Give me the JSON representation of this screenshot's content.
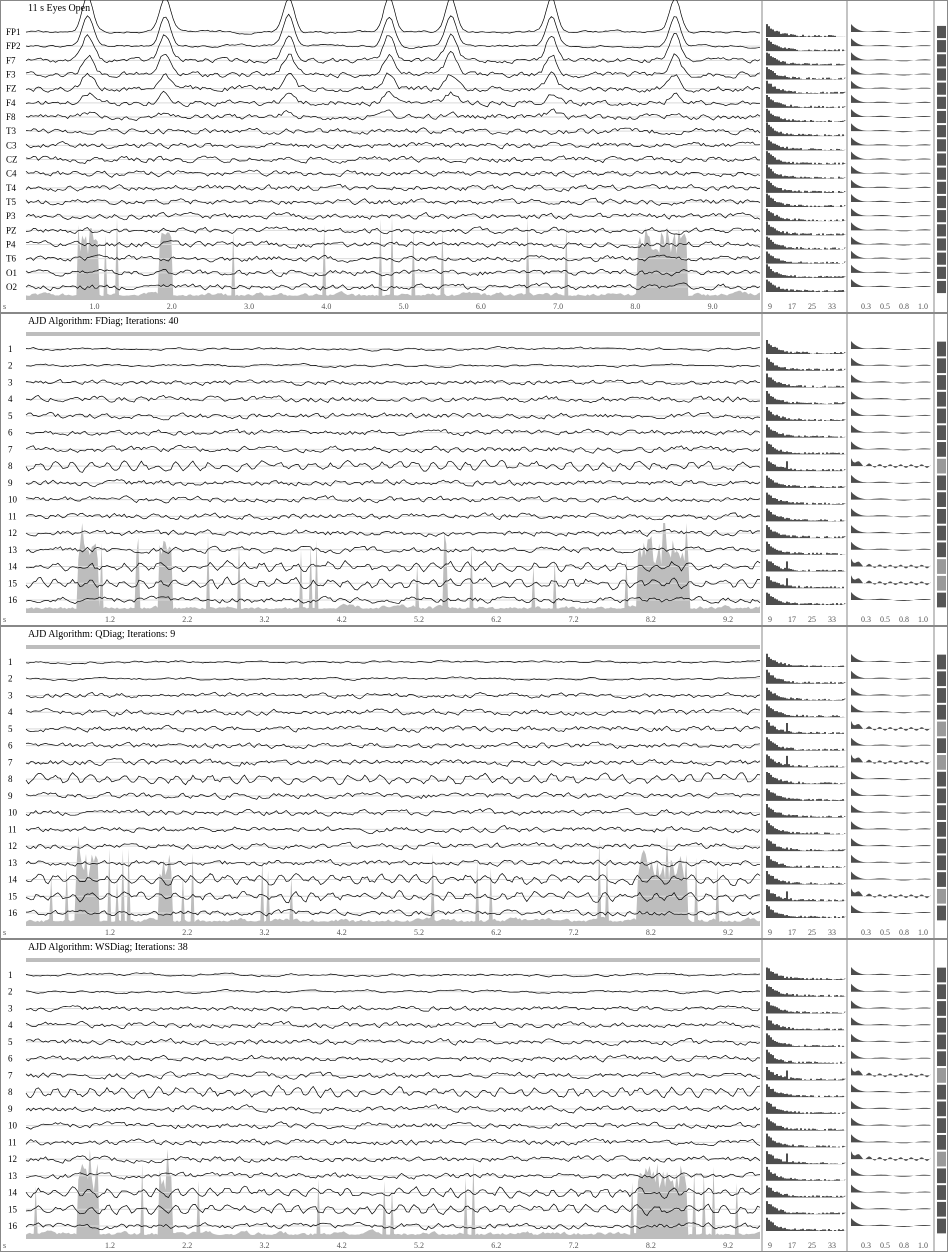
{
  "colors": {
    "trace": "#000000",
    "power_fill": "#bdbdbd",
    "separator_line": "#d9d9d9",
    "hist_fill": "#4d4d4d",
    "bar_dark": "#555555",
    "bar_light": "#999999",
    "panel_border": "#888888"
  },
  "chart_data": [
    {
      "type": "line",
      "title": "11 s Eyes Open",
      "corner_label": "s",
      "channels": [
        "FP1",
        "FP2",
        "F7",
        "F3",
        "FZ",
        "F4",
        "F8",
        "T3",
        "C3",
        "CZ",
        "C4",
        "T4",
        "T5",
        "P3",
        "PZ",
        "P4",
        "T6",
        "O1",
        "O2"
      ],
      "x_ticks": [
        "1.0",
        "2.0",
        "3.0",
        "4.0",
        "5.0",
        "6.0",
        "7.0",
        "8.0",
        "9.0"
      ],
      "xlim": [
        0.1,
        9.6
      ],
      "spectrum_ticks": [
        "9",
        "17",
        "25",
        "33"
      ],
      "coherence_ticks": [
        "0.3",
        "0.5",
        "0.8",
        "1.0"
      ],
      "blink_times": [
        0.9,
        1.9,
        3.5,
        4.8,
        5.6,
        6.9,
        8.5
      ],
      "bar_levels": [
        0.55,
        0.55,
        0.55,
        0.55,
        0.55,
        0.55,
        0.55,
        0.55,
        0.55,
        0.55,
        0.55,
        0.55,
        0.55,
        0.55,
        0.55,
        0.55,
        0.55,
        0.55,
        0.55
      ]
    },
    {
      "type": "line",
      "title": "AJD Algorithm: FDiag; Iterations: 40",
      "corner_label": "s",
      "channels": [
        "1",
        "2",
        "3",
        "4",
        "5",
        "6",
        "7",
        "8",
        "9",
        "10",
        "11",
        "12",
        "13",
        "14",
        "15",
        "16"
      ],
      "x_ticks": [
        "1.2",
        "2.2",
        "3.2",
        "4.2",
        "5.2",
        "6.2",
        "7.2",
        "8.2",
        "9.2"
      ],
      "xlim": [
        0.1,
        9.6
      ],
      "spectrum_ticks": [
        "9",
        "17",
        "25",
        "33"
      ],
      "coherence_ticks": [
        "0.3",
        "0.5",
        "0.8",
        "1.0"
      ],
      "bar_levels": [
        0.55,
        0.55,
        0.55,
        0.55,
        0.55,
        0.55,
        0.55,
        0.9,
        0.55,
        0.55,
        0.55,
        0.55,
        0.55,
        0.9,
        0.9,
        0.55
      ]
    },
    {
      "type": "line",
      "title": "AJD Algorithm: QDiag; Iterations: 9",
      "corner_label": "s",
      "channels": [
        "1",
        "2",
        "3",
        "4",
        "5",
        "6",
        "7",
        "8",
        "9",
        "10",
        "11",
        "12",
        "13",
        "14",
        "15",
        "16"
      ],
      "x_ticks": [
        "1.2",
        "2.2",
        "3.2",
        "4.2",
        "5.2",
        "6.2",
        "7.2",
        "8.2",
        "9.2"
      ],
      "xlim": [
        0.1,
        9.6
      ],
      "spectrum_ticks": [
        "9",
        "17",
        "25",
        "33"
      ],
      "coherence_ticks": [
        "0.3",
        "0.5",
        "0.8",
        "1.0"
      ],
      "bar_levels": [
        0.55,
        0.55,
        0.55,
        0.55,
        0.9,
        0.55,
        0.9,
        0.55,
        0.55,
        0.55,
        0.55,
        0.55,
        0.55,
        0.55,
        0.9,
        0.55
      ]
    },
    {
      "type": "line",
      "title": "AJD Algorithm: WSDiag; Iterations: 38",
      "corner_label": "s",
      "channels": [
        "1",
        "2",
        "3",
        "4",
        "5",
        "6",
        "7",
        "8",
        "9",
        "10",
        "11",
        "12",
        "13",
        "14",
        "15",
        "16"
      ],
      "x_ticks": [
        "1.2",
        "2.2",
        "3.2",
        "4.2",
        "5.2",
        "6.2",
        "7.2",
        "8.2",
        "9.2"
      ],
      "xlim": [
        0.1,
        9.6
      ],
      "spectrum_ticks": [
        "9",
        "17",
        "25",
        "33"
      ],
      "coherence_ticks": [
        "0.3",
        "0.5",
        "0.8",
        "1.0"
      ],
      "bar_levels": [
        0.55,
        0.55,
        0.55,
        0.55,
        0.55,
        0.55,
        0.9,
        0.55,
        0.55,
        0.55,
        0.55,
        0.9,
        0.55,
        0.55,
        0.55,
        0.55
      ]
    }
  ]
}
